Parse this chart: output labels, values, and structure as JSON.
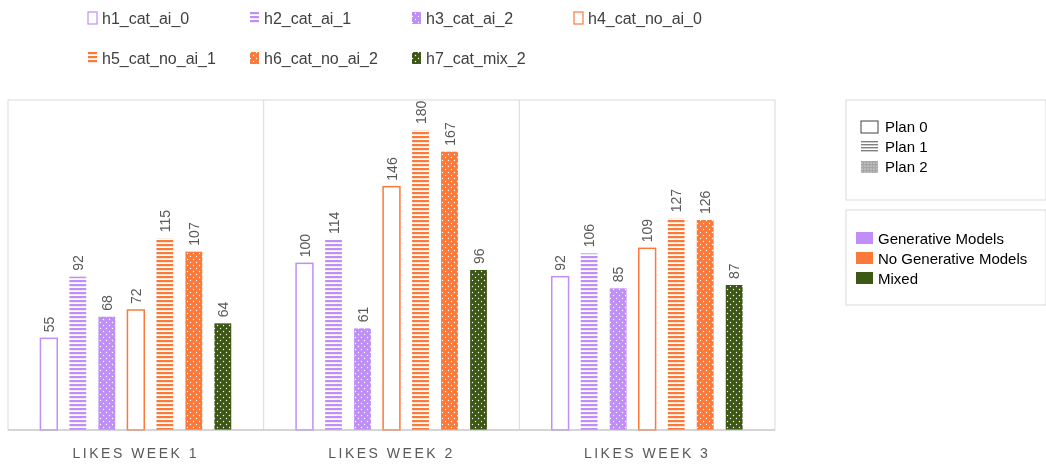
{
  "chart_data": {
    "type": "bar",
    "categories": [
      "LIKES WEEK 1",
      "LIKES WEEK 2",
      "LIKES WEEK 3"
    ],
    "series": [
      {
        "name": "h1_cat_ai_0",
        "color": "#bf8ff7",
        "values": [
          55,
          100,
          92
        ]
      },
      {
        "name": "h2_cat_ai_1",
        "color": "#bf8ff7",
        "values": [
          92,
          114,
          106
        ]
      },
      {
        "name": "h3_cat_ai_2",
        "color": "#bf8ff7",
        "values": [
          68,
          61,
          85
        ]
      },
      {
        "name": "h4_cat_no_ai_0",
        "color": "#fb7a3a",
        "values": [
          72,
          146,
          109
        ]
      },
      {
        "name": "h5_cat_no_ai_1",
        "color": "#fb7a3a",
        "values": [
          115,
          180,
          127
        ]
      },
      {
        "name": "h6_cat_no_ai_2",
        "color": "#fb7a3a",
        "values": [
          107,
          167,
          126
        ]
      },
      {
        "name": "h7_cat_mix_2",
        "color": "#3d5815",
        "values": [
          64,
          96,
          87
        ]
      }
    ],
    "data_labels": true,
    "legend": "top",
    "grid": "x",
    "annotations": [
      "Plan 0",
      "Plan 1",
      "Plan 2",
      "Generative Models",
      "No Generative Models",
      "Mixed"
    ]
  }
}
